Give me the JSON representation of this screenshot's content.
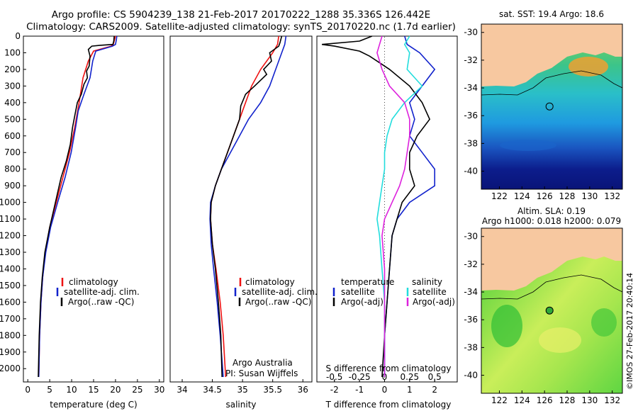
{
  "header": {
    "title1": "Argo profile: CS 5904239_138 21-Feb-2017 20170222_1288 35.336S 126.442E",
    "title2": "Climatology: CARS2009. Satellite-adjusted climatology: synTS_20170220.nc (1.7d earlier)"
  },
  "colors": {
    "climatology": "#ee1111",
    "satellite": "#1122cc",
    "argo": "#000000",
    "salinity_sat": "#22dddd",
    "salinity_argo": "#dd22dd",
    "land": "#f7c8a0"
  },
  "chart_data": [
    {
      "type": "line",
      "id": "temperature",
      "xlabel": "temperature (deg C)",
      "xlim": [
        -1,
        31
      ],
      "xticks": [
        0,
        5,
        10,
        15,
        20,
        25,
        30
      ],
      "ylim": [
        2080,
        0
      ],
      "yticks": [
        0,
        100,
        200,
        300,
        400,
        500,
        600,
        700,
        800,
        900,
        1000,
        1100,
        1200,
        1300,
        1400,
        1500,
        1600,
        1700,
        1800,
        1900,
        2000
      ],
      "legend": [
        "climatology",
        "satellite-adj. clim.",
        "Argo(..raw -QC)"
      ],
      "series": [
        {
          "name": "climatology",
          "color": "#ee1111",
          "points": [
            [
              20,
              0
            ],
            [
              19.8,
              20
            ],
            [
              19.5,
              50
            ],
            [
              19.0,
              60
            ],
            [
              15,
              90
            ],
            [
              13.8,
              150
            ],
            [
              12.6,
              250
            ],
            [
              11.7,
              400
            ],
            [
              10.7,
              550
            ],
            [
              9.5,
              700
            ],
            [
              8.0,
              850
            ],
            [
              6.5,
              1000
            ],
            [
              5.0,
              1150
            ],
            [
              4.0,
              1300
            ],
            [
              3.4,
              1450
            ],
            [
              3.0,
              1600
            ],
            [
              2.7,
              1800
            ],
            [
              2.5,
              2050
            ]
          ]
        },
        {
          "name": "satellite-adj. clim.",
          "color": "#1122cc",
          "points": [
            [
              20.3,
              0
            ],
            [
              20.2,
              20
            ],
            [
              20.0,
              50
            ],
            [
              19.3,
              60
            ],
            [
              15.5,
              90
            ],
            [
              14.8,
              150
            ],
            [
              14.2,
              250
            ],
            [
              12.8,
              350
            ],
            [
              11.5,
              450
            ],
            [
              10.9,
              550
            ],
            [
              9.9,
              700
            ],
            [
              8.5,
              850
            ],
            [
              6.8,
              1000
            ],
            [
              5.2,
              1150
            ],
            [
              4.1,
              1300
            ],
            [
              3.4,
              1450
            ],
            [
              3.0,
              1600
            ],
            [
              2.7,
              1800
            ],
            [
              2.5,
              2050
            ]
          ]
        },
        {
          "name": "Argo(..raw -QC)",
          "color": "#000000",
          "points": [
            [
              19.7,
              0
            ],
            [
              19.6,
              30
            ],
            [
              19.4,
              50
            ],
            [
              16.5,
              55
            ],
            [
              14.6,
              60
            ],
            [
              13.8,
              80
            ],
            [
              14.2,
              120
            ],
            [
              14.0,
              180
            ],
            [
              13.4,
              210
            ],
            [
              13.6,
              250
            ],
            [
              12.8,
              290
            ],
            [
              12.2,
              350
            ],
            [
              11.3,
              400
            ],
            [
              10.7,
              480
            ],
            [
              10.2,
              550
            ],
            [
              9.7,
              650
            ],
            [
              8.8,
              750
            ],
            [
              7.6,
              850
            ],
            [
              6.3,
              1000
            ],
            [
              5.0,
              1150
            ],
            [
              3.9,
              1300
            ],
            [
              3.3,
              1450
            ],
            [
              2.9,
              1600
            ],
            [
              2.6,
              1800
            ],
            [
              2.4,
              2050
            ]
          ]
        }
      ]
    },
    {
      "type": "line",
      "id": "salinity",
      "xlabel": "salinity",
      "xlim": [
        33.8,
        36.15
      ],
      "xticks": [
        34,
        34.5,
        35,
        35.5,
        36
      ],
      "ylim": [
        2080,
        0
      ],
      "legend": [
        "climatology",
        "satellite-adj. clim.",
        "Argo(..raw -QC)"
      ],
      "credit": [
        "Argo Australia",
        "PI: Susan Wijffels"
      ],
      "series": [
        {
          "name": "climatology",
          "color": "#ee1111",
          "points": [
            [
              35.6,
              0
            ],
            [
              35.58,
              50
            ],
            [
              35.5,
              100
            ],
            [
              35.3,
              200
            ],
            [
              35.15,
              300
            ],
            [
              35.05,
              400
            ],
            [
              34.95,
              500
            ],
            [
              34.85,
              600
            ],
            [
              34.75,
              700
            ],
            [
              34.65,
              800
            ],
            [
              34.55,
              900
            ],
            [
              34.48,
              1000
            ],
            [
              34.47,
              1100
            ],
            [
              34.5,
              1250
            ],
            [
              34.56,
              1400
            ],
            [
              34.63,
              1600
            ],
            [
              34.68,
              1800
            ],
            [
              34.72,
              2050
            ]
          ]
        },
        {
          "name": "satellite-adj. clim.",
          "color": "#1122cc",
          "points": [
            [
              35.72,
              0
            ],
            [
              35.7,
              50
            ],
            [
              35.65,
              100
            ],
            [
              35.55,
              200
            ],
            [
              35.45,
              300
            ],
            [
              35.3,
              400
            ],
            [
              35.1,
              500
            ],
            [
              34.95,
              600
            ],
            [
              34.8,
              700
            ],
            [
              34.65,
              800
            ],
            [
              34.55,
              900
            ],
            [
              34.47,
              1000
            ],
            [
              34.46,
              1100
            ],
            [
              34.48,
              1250
            ],
            [
              34.52,
              1400
            ],
            [
              34.58,
              1600
            ],
            [
              34.63,
              1800
            ],
            [
              34.68,
              2050
            ]
          ]
        },
        {
          "name": "Argo(..raw -QC)",
          "color": "#000000",
          "points": [
            [
              35.65,
              0
            ],
            [
              35.62,
              40
            ],
            [
              35.6,
              60
            ],
            [
              35.45,
              100
            ],
            [
              35.48,
              150
            ],
            [
              35.35,
              200
            ],
            [
              35.4,
              230
            ],
            [
              35.2,
              300
            ],
            [
              35.05,
              350
            ],
            [
              34.97,
              420
            ],
            [
              34.95,
              500
            ],
            [
              34.85,
              600
            ],
            [
              34.75,
              700
            ],
            [
              34.65,
              800
            ],
            [
              34.55,
              900
            ],
            [
              34.48,
              1000
            ],
            [
              34.47,
              1100
            ],
            [
              34.5,
              1250
            ],
            [
              34.55,
              1400
            ],
            [
              34.6,
              1600
            ],
            [
              34.64,
              1800
            ],
            [
              34.66,
              2050
            ]
          ]
        }
      ]
    },
    {
      "type": "line",
      "id": "difference",
      "xlabel": "T difference from climatology",
      "xlabel_top": "S difference from climatology",
      "xlim": [
        -2.7,
        2.9
      ],
      "xticks": [
        -2,
        -1,
        0,
        1,
        2
      ],
      "xticks_top_labels": [
        "-0.5",
        "-0.25",
        "0",
        "0.25",
        "0.5"
      ],
      "xticks_top_values": [
        -0.5,
        -0.25,
        0,
        0.25,
        0.5
      ],
      "ylim": [
        2080,
        0
      ],
      "legend_titles": [
        "temperature",
        "salinity"
      ],
      "legend": [
        "satellite",
        "Argo(-adj)",
        "satellite",
        "Argo(-adj)"
      ],
      "series": [
        {
          "name": "satellite",
          "color": "#1122cc",
          "points": [
            [
              0.8,
              0
            ],
            [
              0.9,
              50
            ],
            [
              1.4,
              100
            ],
            [
              2.0,
              200
            ],
            [
              1.5,
              300
            ],
            [
              1.0,
              400
            ],
            [
              1.2,
              500
            ],
            [
              1.0,
              600
            ],
            [
              1.5,
              700
            ],
            [
              2.0,
              800
            ],
            [
              2.0,
              900
            ],
            [
              1.0,
              1000
            ],
            [
              0.5,
              1100
            ],
            [
              0.3,
              1200
            ],
            [
              0.2,
              1400
            ],
            [
              0.1,
              1600
            ],
            [
              0.0,
              1800
            ],
            [
              0.0,
              2050
            ]
          ]
        },
        {
          "name": "Argo(-adj)",
          "color": "#000000",
          "points": [
            [
              -0.5,
              0
            ],
            [
              -1.0,
              30
            ],
            [
              -2.5,
              50
            ],
            [
              -2.0,
              60
            ],
            [
              -1.0,
              90
            ],
            [
              -0.6,
              120
            ],
            [
              -0.3,
              150
            ],
            [
              0.2,
              200
            ],
            [
              1.0,
              300
            ],
            [
              1.5,
              400
            ],
            [
              1.8,
              500
            ],
            [
              1.3,
              600
            ],
            [
              1.0,
              700
            ],
            [
              1.0,
              800
            ],
            [
              1.2,
              900
            ],
            [
              0.7,
              1000
            ],
            [
              0.5,
              1100
            ],
            [
              0.3,
              1200
            ],
            [
              0.2,
              1400
            ],
            [
              0.1,
              1600
            ],
            [
              0.0,
              1800
            ],
            [
              -0.1,
              2050
            ]
          ]
        },
        {
          "name": "satellite",
          "color": "#22dddd",
          "points": [
            [
              1.0,
              0
            ],
            [
              0.8,
              50
            ],
            [
              1.0,
              100
            ],
            [
              0.9,
              200
            ],
            [
              1.5,
              300
            ],
            [
              0.8,
              400
            ],
            [
              0.3,
              500
            ],
            [
              0.1,
              600
            ],
            [
              0.0,
              700
            ],
            [
              0.0,
              800
            ],
            [
              -0.1,
              900
            ],
            [
              -0.2,
              1000
            ],
            [
              -0.3,
              1100
            ],
            [
              -0.2,
              1200
            ],
            [
              -0.1,
              1400
            ],
            [
              0.0,
              1600
            ],
            [
              0.0,
              2050
            ]
          ]
        },
        {
          "name": "Argo(-adj)",
          "color": "#dd22dd",
          "points": [
            [
              -0.1,
              0
            ],
            [
              -0.2,
              50
            ],
            [
              -0.3,
              100
            ],
            [
              -0.1,
              200
            ],
            [
              0.2,
              300
            ],
            [
              0.8,
              400
            ],
            [
              1.0,
              500
            ],
            [
              1.0,
              600
            ],
            [
              0.9,
              700
            ],
            [
              0.8,
              800
            ],
            [
              0.6,
              900
            ],
            [
              0.3,
              1000
            ],
            [
              0.0,
              1100
            ],
            [
              -0.1,
              1200
            ],
            [
              0.0,
              1400
            ],
            [
              0.0,
              1600
            ],
            [
              0.0,
              2050
            ]
          ]
        }
      ]
    },
    {
      "type": "heatmap",
      "id": "sst-map",
      "title": "sat. SST: 19.4  Argo: 18.6",
      "xlim": [
        120.4,
        132.9
      ],
      "ylim": [
        -41.3,
        -29.4
      ],
      "xticks": [
        122,
        124,
        126,
        128,
        130,
        132
      ],
      "yticks": [
        -30,
        -32,
        -34,
        -36,
        -38,
        -40
      ],
      "marker": [
        126.442,
        -35.336
      ]
    },
    {
      "type": "heatmap",
      "id": "sla-map",
      "title1": "Altim. SLA: 0.19",
      "title2": "Argo h1000: 0.018 h2000: 0.079",
      "xlim": [
        120.4,
        132.9
      ],
      "ylim": [
        -41.3,
        -29.4
      ],
      "xticks": [
        122,
        124,
        126,
        128,
        130,
        132
      ],
      "yticks": [
        -30,
        -32,
        -34,
        -36,
        -38,
        -40
      ],
      "marker": [
        126.442,
        -35.336
      ]
    }
  ],
  "footer": {
    "credit": "©IMOS 27-Feb-2017 20:40:14"
  }
}
